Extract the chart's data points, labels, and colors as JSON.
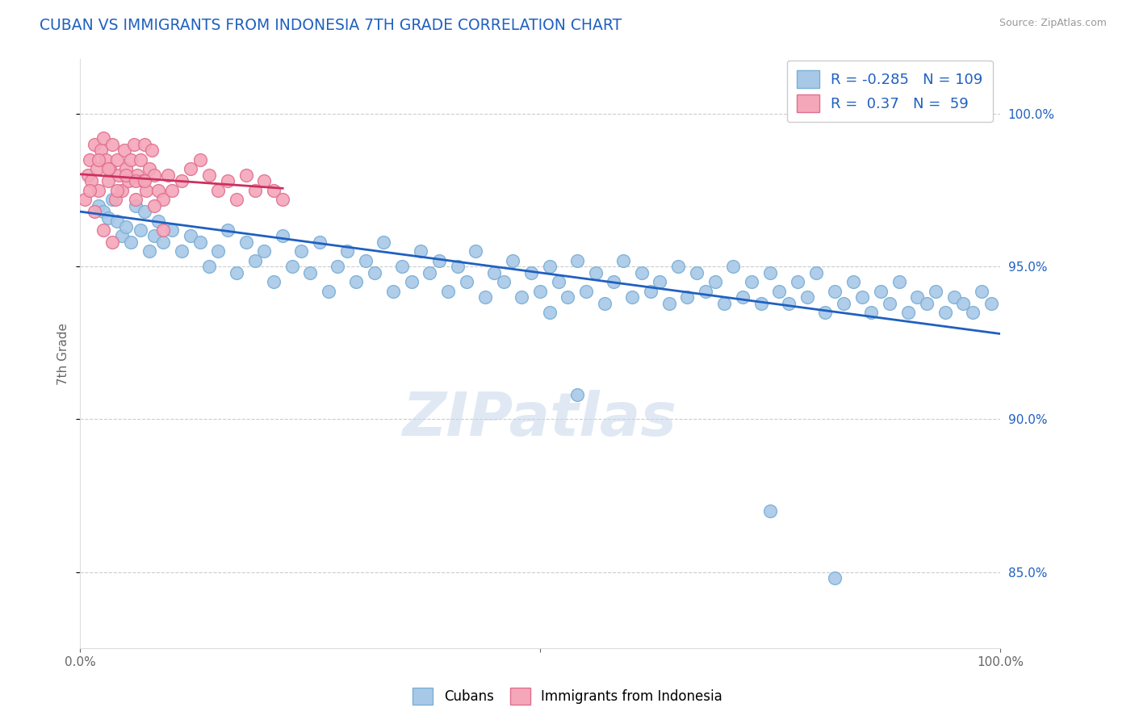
{
  "title": "CUBAN VS IMMIGRANTS FROM INDONESIA 7TH GRADE CORRELATION CHART",
  "source": "Source: ZipAtlas.com",
  "ylabel": "7th Grade",
  "yticks": [
    0.85,
    0.9,
    0.95,
    1.0
  ],
  "ytick_labels": [
    "85.0%",
    "90.0%",
    "95.0%",
    "100.0%"
  ],
  "xlim": [
    0.0,
    1.0
  ],
  "ylim": [
    0.825,
    1.018
  ],
  "blue_R": -0.285,
  "blue_N": 109,
  "pink_R": 0.37,
  "pink_N": 59,
  "blue_color": "#a8c8e8",
  "blue_edge": "#7aafd4",
  "pink_color": "#f4a7b9",
  "pink_edge": "#e07090",
  "blue_line_color": "#2060c0",
  "pink_line_color": "#cc3060",
  "legend_text_color": "#2060c0",
  "watermark_color": "#c8d8ea",
  "blue_x": [
    0.02,
    0.025,
    0.03,
    0.035,
    0.04,
    0.045,
    0.05,
    0.055,
    0.06,
    0.065,
    0.07,
    0.075,
    0.08,
    0.085,
    0.09,
    0.1,
    0.11,
    0.12,
    0.13,
    0.14,
    0.15,
    0.16,
    0.17,
    0.18,
    0.19,
    0.2,
    0.21,
    0.22,
    0.23,
    0.24,
    0.25,
    0.26,
    0.27,
    0.28,
    0.29,
    0.3,
    0.31,
    0.32,
    0.33,
    0.34,
    0.35,
    0.36,
    0.37,
    0.38,
    0.39,
    0.4,
    0.41,
    0.42,
    0.43,
    0.44,
    0.45,
    0.46,
    0.47,
    0.48,
    0.49,
    0.5,
    0.51,
    0.52,
    0.53,
    0.54,
    0.55,
    0.56,
    0.57,
    0.58,
    0.59,
    0.6,
    0.61,
    0.62,
    0.63,
    0.64,
    0.65,
    0.66,
    0.67,
    0.68,
    0.69,
    0.7,
    0.71,
    0.72,
    0.73,
    0.74,
    0.75,
    0.76,
    0.77,
    0.78,
    0.79,
    0.8,
    0.81,
    0.82,
    0.83,
    0.84,
    0.85,
    0.86,
    0.87,
    0.88,
    0.89,
    0.9,
    0.91,
    0.92,
    0.93,
    0.94,
    0.95,
    0.96,
    0.97,
    0.98,
    0.99,
    0.51,
    0.54,
    0.75,
    0.82
  ],
  "blue_y": [
    0.97,
    0.968,
    0.966,
    0.972,
    0.965,
    0.96,
    0.963,
    0.958,
    0.97,
    0.962,
    0.968,
    0.955,
    0.96,
    0.965,
    0.958,
    0.962,
    0.955,
    0.96,
    0.958,
    0.95,
    0.955,
    0.962,
    0.948,
    0.958,
    0.952,
    0.955,
    0.945,
    0.96,
    0.95,
    0.955,
    0.948,
    0.958,
    0.942,
    0.95,
    0.955,
    0.945,
    0.952,
    0.948,
    0.958,
    0.942,
    0.95,
    0.945,
    0.955,
    0.948,
    0.952,
    0.942,
    0.95,
    0.945,
    0.955,
    0.94,
    0.948,
    0.945,
    0.952,
    0.94,
    0.948,
    0.942,
    0.95,
    0.945,
    0.94,
    0.952,
    0.942,
    0.948,
    0.938,
    0.945,
    0.952,
    0.94,
    0.948,
    0.942,
    0.945,
    0.938,
    0.95,
    0.94,
    0.948,
    0.942,
    0.945,
    0.938,
    0.95,
    0.94,
    0.945,
    0.938,
    0.948,
    0.942,
    0.938,
    0.945,
    0.94,
    0.948,
    0.935,
    0.942,
    0.938,
    0.945,
    0.94,
    0.935,
    0.942,
    0.938,
    0.945,
    0.935,
    0.94,
    0.938,
    0.942,
    0.935,
    0.94,
    0.938,
    0.935,
    0.942,
    0.938,
    0.935,
    0.908,
    0.87,
    0.848
  ],
  "pink_x": [
    0.005,
    0.008,
    0.01,
    0.012,
    0.015,
    0.018,
    0.02,
    0.022,
    0.025,
    0.028,
    0.03,
    0.032,
    0.035,
    0.038,
    0.04,
    0.042,
    0.045,
    0.048,
    0.05,
    0.052,
    0.055,
    0.058,
    0.06,
    0.062,
    0.065,
    0.068,
    0.07,
    0.072,
    0.075,
    0.078,
    0.08,
    0.085,
    0.09,
    0.095,
    0.1,
    0.11,
    0.12,
    0.13,
    0.14,
    0.15,
    0.16,
    0.17,
    0.18,
    0.19,
    0.2,
    0.21,
    0.22,
    0.015,
    0.025,
    0.035,
    0.01,
    0.02,
    0.05,
    0.06,
    0.08,
    0.04,
    0.03,
    0.07,
    0.09
  ],
  "pink_y": [
    0.972,
    0.98,
    0.985,
    0.978,
    0.99,
    0.982,
    0.975,
    0.988,
    0.992,
    0.985,
    0.978,
    0.982,
    0.99,
    0.972,
    0.985,
    0.98,
    0.975,
    0.988,
    0.982,
    0.978,
    0.985,
    0.99,
    0.972,
    0.98,
    0.985,
    0.978,
    0.99,
    0.975,
    0.982,
    0.988,
    0.98,
    0.975,
    0.972,
    0.98,
    0.975,
    0.978,
    0.982,
    0.985,
    0.98,
    0.975,
    0.978,
    0.972,
    0.98,
    0.975,
    0.978,
    0.975,
    0.972,
    0.968,
    0.962,
    0.958,
    0.975,
    0.985,
    0.98,
    0.978,
    0.97,
    0.975,
    0.982,
    0.978,
    0.962
  ]
}
